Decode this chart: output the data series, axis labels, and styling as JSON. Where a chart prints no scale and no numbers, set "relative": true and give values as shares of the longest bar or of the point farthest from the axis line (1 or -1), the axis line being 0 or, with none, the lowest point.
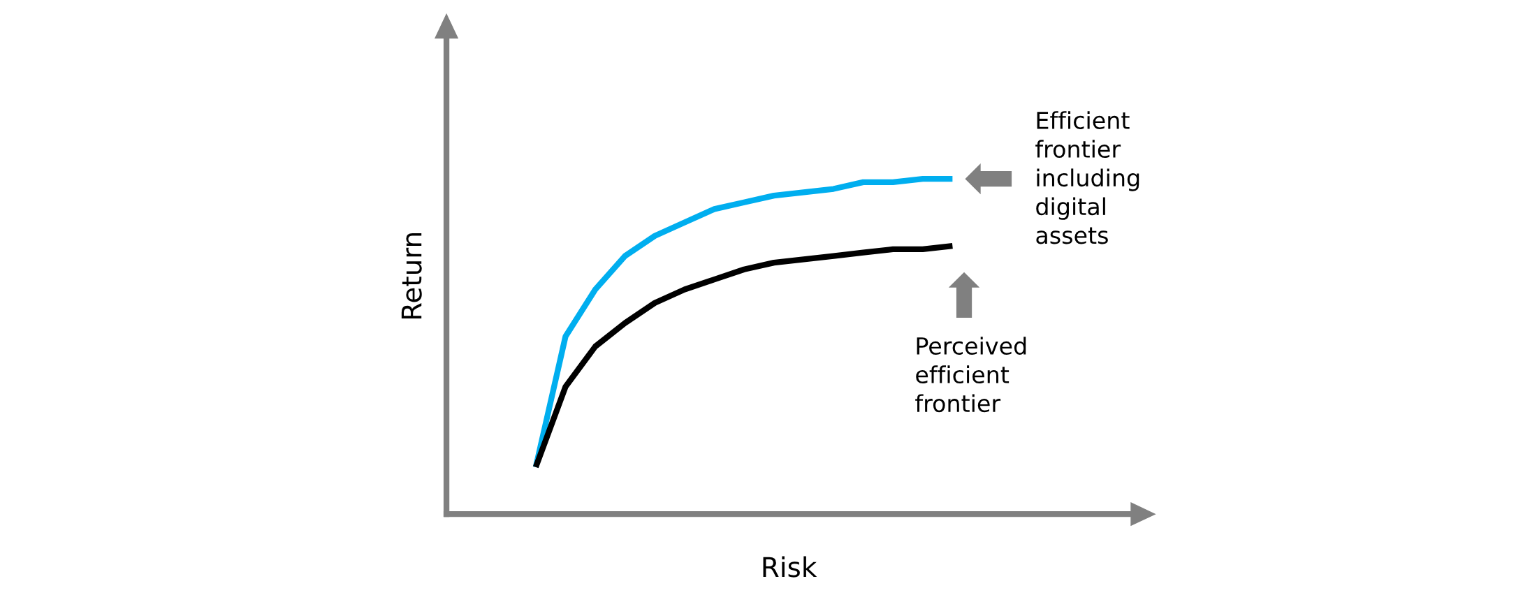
{
  "chart_data": {
    "type": "line",
    "relative": true,
    "xlabel": "Risk",
    "ylabel": "Return",
    "categories": [
      null,
      null,
      null,
      null,
      null,
      null,
      null,
      null,
      null,
      null,
      null,
      null,
      null,
      null,
      null,
      null,
      null,
      null,
      null,
      null,
      null,
      null,
      null,
      null
    ],
    "series": [
      {
        "color": "#00aeef",
        "values": [
          null,
          null,
          null,
          0.14,
          0.53,
          0.67,
          0.77,
          0.83,
          0.87,
          0.91,
          0.93,
          0.95,
          0.96,
          0.97,
          0.99,
          0.99,
          1.0,
          1.0,
          null,
          null,
          null,
          null,
          null,
          null
        ]
      },
      {
        "color": "#000000",
        "values": [
          null,
          null,
          null,
          0.14,
          0.38,
          0.5,
          0.57,
          0.63,
          0.67,
          0.7,
          0.73,
          0.75,
          0.76,
          0.77,
          0.78,
          0.79,
          0.79,
          0.8,
          null,
          null,
          null,
          null,
          null,
          null
        ]
      }
    ],
    "annotations": [
      "Efficient frontier including digital assets",
      "Perceived efficient frontier"
    ],
    "marker": "none",
    "line_style": "solid",
    "grid": false,
    "legend": false
  }
}
